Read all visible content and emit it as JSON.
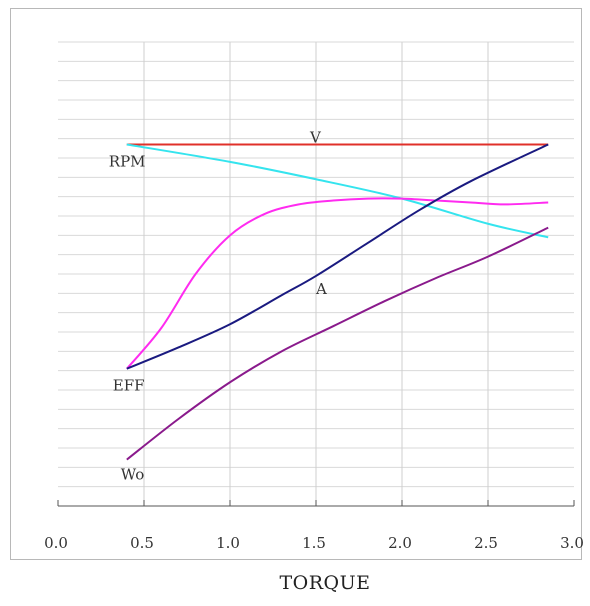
{
  "chart_data": {
    "type": "line",
    "title": "",
    "xlabel": "TORQUE",
    "ylabel": "",
    "xlim": [
      0.0,
      3.0
    ],
    "ylim": [
      0,
      24
    ],
    "grid": {
      "horizontal": true,
      "vertical": true,
      "horizontal_lines": 24
    },
    "x_ticks": [
      "0.0",
      "0.5",
      "1.0",
      "1.5",
      "2.0",
      "2.5",
      "3.0"
    ],
    "series": [
      {
        "name": "V",
        "color": "#e0302a",
        "points": [
          [
            0.4,
            18.7
          ],
          [
            2.85,
            18.7
          ]
        ],
        "label_at": [
          1.5,
          18.7
        ]
      },
      {
        "name": "RPM",
        "color": "#35e4ee",
        "points": [
          [
            0.4,
            18.7
          ],
          [
            1.0,
            17.8
          ],
          [
            1.5,
            16.9
          ],
          [
            2.0,
            15.9
          ],
          [
            2.5,
            14.6
          ],
          [
            2.85,
            13.9
          ]
        ],
        "label_at": [
          0.4,
          18.7
        ]
      },
      {
        "name": "EFF",
        "color": "#ff2bf0",
        "points": [
          [
            0.4,
            7.1
          ],
          [
            0.6,
            9.2
          ],
          [
            0.8,
            12.0
          ],
          [
            1.0,
            14.0
          ],
          [
            1.2,
            15.1
          ],
          [
            1.4,
            15.6
          ],
          [
            1.6,
            15.8
          ],
          [
            1.8,
            15.9
          ],
          [
            2.0,
            15.9
          ],
          [
            2.2,
            15.8
          ],
          [
            2.4,
            15.7
          ],
          [
            2.6,
            15.6
          ],
          [
            2.85,
            15.7
          ]
        ],
        "label_at": [
          0.4,
          7.1
        ]
      },
      {
        "name": "A",
        "color": "#1a1a80",
        "points": [
          [
            0.4,
            7.1
          ],
          [
            0.7,
            8.2
          ],
          [
            1.0,
            9.4
          ],
          [
            1.3,
            10.9
          ],
          [
            1.5,
            11.9
          ],
          [
            1.8,
            13.6
          ],
          [
            2.1,
            15.3
          ],
          [
            2.4,
            16.8
          ],
          [
            2.85,
            18.7
          ]
        ],
        "label_at": [
          1.5,
          11.9
        ]
      },
      {
        "name": "Wo",
        "color": "#8a1a8c",
        "points": [
          [
            0.4,
            2.4
          ],
          [
            0.7,
            4.5
          ],
          [
            1.0,
            6.4
          ],
          [
            1.3,
            8.0
          ],
          [
            1.6,
            9.3
          ],
          [
            1.9,
            10.6
          ],
          [
            2.2,
            11.8
          ],
          [
            2.5,
            12.9
          ],
          [
            2.85,
            14.4
          ]
        ],
        "label_at": [
          0.4,
          2.4
        ]
      }
    ]
  }
}
